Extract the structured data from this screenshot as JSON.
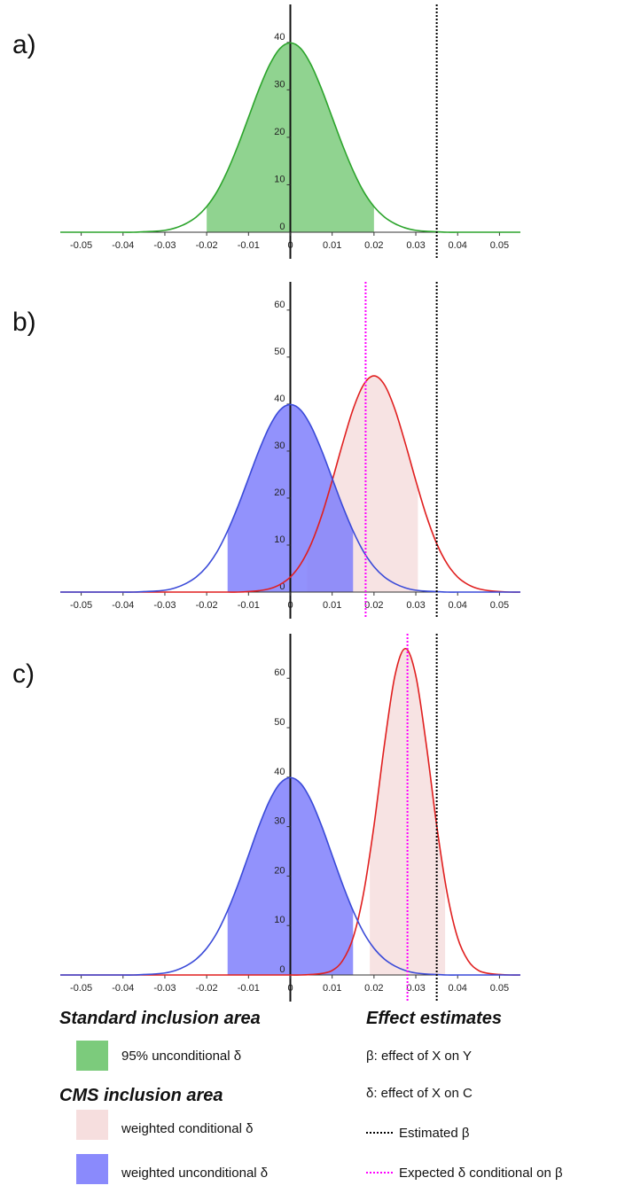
{
  "chart_data": [
    {
      "type": "area",
      "label": "a)",
      "x": [
        -0.055,
        -0.0525,
        -0.05,
        -0.0475,
        -0.045,
        -0.0425,
        -0.04,
        -0.0375,
        -0.035,
        -0.0325,
        -0.03,
        -0.0275,
        -0.025,
        -0.0225,
        -0.02,
        -0.0175,
        -0.015,
        -0.0125,
        -0.01,
        -0.0075,
        -0.005,
        -0.0025,
        0,
        0.0025,
        0.005,
        0.0075,
        0.01,
        0.0125,
        0.015,
        0.0175,
        0.02,
        0.0225,
        0.025,
        0.0275,
        0.03,
        0.0325,
        0.035,
        0.0375,
        0.04,
        0.0425,
        0.045,
        0.0475,
        0.05,
        0.0525,
        0.055
      ],
      "xlim": [
        -0.055,
        0.055
      ],
      "xticks": [
        -0.05,
        -0.04,
        -0.03,
        -0.02,
        -0.01,
        0,
        0.01,
        0.02,
        0.03,
        0.04,
        0.05
      ],
      "ylim": [
        0,
        48
      ],
      "yticks": [
        0,
        10,
        20,
        30,
        40
      ],
      "series": [
        {
          "color": "#2ca42c",
          "fill": "#7ccb7c",
          "shade": [
            -0.02,
            0.02
          ],
          "values": [
            0,
            0,
            0,
            0,
            0,
            0,
            0,
            0,
            0.1,
            0.2,
            0.4,
            0.9,
            1.8,
            3.2,
            5.4,
            8.6,
            13,
            18.3,
            24.2,
            30.1,
            35.2,
            38.7,
            39.9,
            38.7,
            35.2,
            30.1,
            24.2,
            18.3,
            13,
            8.6,
            5.4,
            3.2,
            1.8,
            0.9,
            0.4,
            0.2,
            0.1,
            0,
            0,
            0,
            0,
            0,
            0,
            0,
            0
          ]
        }
      ],
      "markers": [
        {
          "value": 0.035,
          "color": "#000000"
        }
      ]
    },
    {
      "type": "area",
      "label": "b)",
      "x": [
        -0.055,
        -0.0525,
        -0.05,
        -0.0475,
        -0.045,
        -0.0425,
        -0.04,
        -0.0375,
        -0.035,
        -0.0325,
        -0.03,
        -0.0275,
        -0.025,
        -0.0225,
        -0.02,
        -0.0175,
        -0.015,
        -0.0125,
        -0.01,
        -0.0075,
        -0.005,
        -0.0025,
        0,
        0.0025,
        0.005,
        0.0075,
        0.01,
        0.0125,
        0.015,
        0.0175,
        0.02,
        0.0225,
        0.025,
        0.0275,
        0.03,
        0.0325,
        0.035,
        0.0375,
        0.04,
        0.0425,
        0.045,
        0.0475,
        0.05,
        0.0525,
        0.055
      ],
      "xlim": [
        -0.055,
        0.055
      ],
      "xticks": [
        -0.05,
        -0.04,
        -0.03,
        -0.02,
        -0.01,
        0,
        0.01,
        0.02,
        0.03,
        0.04,
        0.05
      ],
      "ylim": [
        0,
        66
      ],
      "yticks": [
        0,
        10,
        20,
        30,
        40,
        50,
        60
      ],
      "series": [
        {
          "color": "#e01f1f",
          "fill": "#f6dede",
          "shade": [
            0.004,
            0.0305
          ],
          "values": [
            0,
            0,
            0,
            0,
            0,
            0,
            0,
            0,
            0,
            0,
            0,
            0,
            0,
            0,
            0,
            0,
            0,
            0,
            0.1,
            0.3,
            0.7,
            1.6,
            3.2,
            6,
            10.3,
            16.3,
            23.7,
            31.6,
            38.9,
            44.1,
            46,
            44.1,
            38.9,
            31.6,
            23.7,
            16.3,
            10.3,
            6,
            3.2,
            1.6,
            0.7,
            0.3,
            0.1,
            0,
            0
          ]
        },
        {
          "color": "#3a4ad8",
          "fill": "#7f7ffc",
          "shade": [
            -0.015,
            0.015
          ],
          "values": [
            0,
            0,
            0,
            0,
            0,
            0,
            0,
            0,
            0.1,
            0.2,
            0.4,
            0.9,
            1.8,
            3.2,
            5.4,
            8.6,
            13,
            18.3,
            24.2,
            30.1,
            35.2,
            38.7,
            39.9,
            38.7,
            35.2,
            30.1,
            24.2,
            18.3,
            13,
            8.6,
            5.4,
            3.2,
            1.8,
            0.9,
            0.4,
            0.2,
            0.1,
            0,
            0,
            0,
            0,
            0,
            0,
            0,
            0
          ]
        }
      ],
      "markers": [
        {
          "value": 0.018,
          "color": "#ff00ff"
        },
        {
          "value": 0.035,
          "color": "#000000"
        }
      ]
    },
    {
      "type": "area",
      "label": "c)",
      "x": [
        -0.055,
        -0.0525,
        -0.05,
        -0.0475,
        -0.045,
        -0.0425,
        -0.04,
        -0.0375,
        -0.035,
        -0.0325,
        -0.03,
        -0.0275,
        -0.025,
        -0.0225,
        -0.02,
        -0.0175,
        -0.015,
        -0.0125,
        -0.01,
        -0.0075,
        -0.005,
        -0.0025,
        0,
        0.0025,
        0.005,
        0.0075,
        0.01,
        0.0125,
        0.015,
        0.0175,
        0.02,
        0.0225,
        0.025,
        0.0275,
        0.03,
        0.0325,
        0.035,
        0.0375,
        0.04,
        0.0425,
        0.045,
        0.0475,
        0.05,
        0.0525,
        0.055
      ],
      "xlim": [
        -0.055,
        0.055
      ],
      "xticks": [
        -0.05,
        -0.04,
        -0.03,
        -0.02,
        -0.01,
        0,
        0.01,
        0.02,
        0.03,
        0.04,
        0.05
      ],
      "ylim": [
        0,
        69
      ],
      "yticks": [
        0,
        10,
        20,
        30,
        40,
        50,
        60
      ],
      "series": [
        {
          "color": "#e01f1f",
          "fill": "#f6dede",
          "shade": [
            0.019,
            0.037
          ],
          "values": [
            0,
            0,
            0,
            0,
            0,
            0,
            0,
            0,
            0,
            0,
            0,
            0,
            0,
            0,
            0,
            0,
            0,
            0,
            0,
            0,
            0,
            0,
            0,
            0,
            0.1,
            0.3,
            0.9,
            2.9,
            7.5,
            16.5,
            30.2,
            46.6,
            60.5,
            66,
            60.5,
            46.6,
            30.2,
            16.5,
            7.5,
            2.9,
            0.9,
            0.3,
            0.1,
            0,
            0
          ]
        },
        {
          "color": "#3a4ad8",
          "fill": "#7f7ffc",
          "shade": [
            -0.015,
            0.015
          ],
          "values": [
            0,
            0,
            0,
            0,
            0,
            0,
            0,
            0,
            0.1,
            0.2,
            0.4,
            0.9,
            1.8,
            3.2,
            5.4,
            8.6,
            13,
            18.3,
            24.2,
            30.1,
            35.2,
            38.7,
            39.9,
            38.7,
            35.2,
            30.1,
            24.2,
            18.3,
            13,
            8.6,
            5.4,
            3.2,
            1.8,
            0.9,
            0.4,
            0.2,
            0.1,
            0,
            0,
            0,
            0,
            0,
            0,
            0,
            0
          ]
        }
      ],
      "markers": [
        {
          "value": 0.028,
          "color": "#ff00ff"
        },
        {
          "value": 0.035,
          "color": "#000000"
        }
      ]
    }
  ],
  "legend": {
    "groups": [
      {
        "title": "Standard inclusion area",
        "items": [
          "95% unconditional δ"
        ]
      },
      {
        "title": "CMS inclusion area",
        "items": [
          "weighted conditional δ",
          "weighted unconditional δ"
        ]
      }
    ],
    "effects": {
      "title": "Effect estimates",
      "items": [
        "β: effect of X on Y",
        "δ: effect of X on C",
        "Estimated β",
        "Expected δ conditional on β"
      ]
    }
  }
}
